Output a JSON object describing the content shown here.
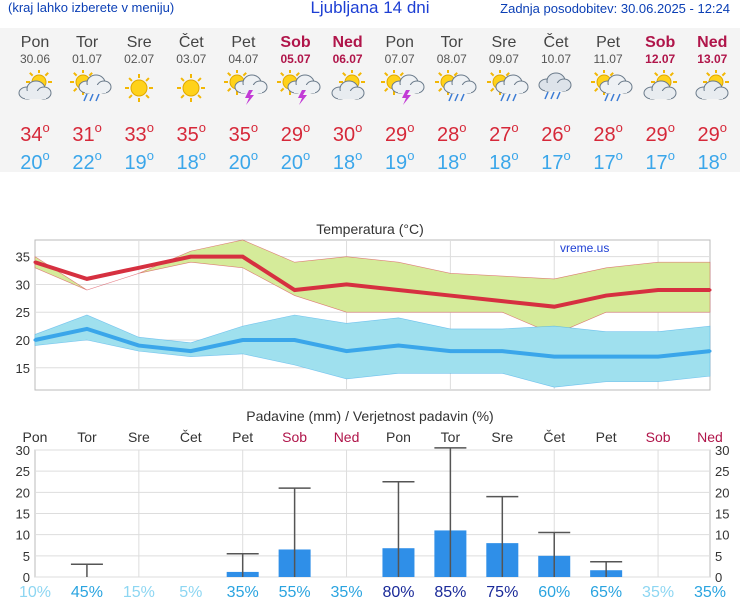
{
  "header": {
    "menu_hint": "(kraj lahko izberete v meniju)",
    "title": "Ljubljana 14 dni",
    "updated": "Zadnja posodobitev: 30.06.2025 - 12:24"
  },
  "days": [
    {
      "name": "Pon",
      "date": "30.06",
      "weekend": false,
      "icon": "partly-cloudy-icon",
      "max": "34",
      "min": "20"
    },
    {
      "name": "Tor",
      "date": "01.07",
      "weekend": false,
      "icon": "sun-cloud-rain-icon",
      "max": "31",
      "min": "22"
    },
    {
      "name": "Sre",
      "date": "02.07",
      "weekend": false,
      "icon": "sunny-icon",
      "max": "33",
      "min": "19"
    },
    {
      "name": "Čet",
      "date": "03.07",
      "weekend": false,
      "icon": "sunny-icon",
      "max": "35",
      "min": "18"
    },
    {
      "name": "Pet",
      "date": "04.07",
      "weekend": false,
      "icon": "sun-cloud-thunder-icon",
      "max": "35",
      "min": "20"
    },
    {
      "name": "Sob",
      "date": "05.07",
      "weekend": true,
      "icon": "sun-cloud-thunder-icon",
      "max": "29",
      "min": "20"
    },
    {
      "name": "Ned",
      "date": "06.07",
      "weekend": true,
      "icon": "partly-cloudy-icon",
      "max": "30",
      "min": "18"
    },
    {
      "name": "Pon",
      "date": "07.07",
      "weekend": false,
      "icon": "sun-cloud-thunder-icon",
      "max": "29",
      "min": "19"
    },
    {
      "name": "Tor",
      "date": "08.07",
      "weekend": false,
      "icon": "sun-cloud-rain-icon",
      "max": "28",
      "min": "18"
    },
    {
      "name": "Sre",
      "date": "09.07",
      "weekend": false,
      "icon": "sun-cloud-rain-icon",
      "max": "27",
      "min": "18"
    },
    {
      "name": "Čet",
      "date": "10.07",
      "weekend": false,
      "icon": "cloud-rain-icon",
      "max": "26",
      "min": "17"
    },
    {
      "name": "Pet",
      "date": "11.07",
      "weekend": false,
      "icon": "sun-cloud-rain-icon",
      "max": "28",
      "min": "17"
    },
    {
      "name": "Sob",
      "date": "12.07",
      "weekend": true,
      "icon": "partly-cloudy-icon",
      "max": "29",
      "min": "17"
    },
    {
      "name": "Ned",
      "date": "13.07",
      "weekend": true,
      "icon": "partly-cloudy-icon",
      "max": "29",
      "min": "18"
    }
  ],
  "chart_data": [
    {
      "type": "line",
      "title": "Temperatura (°C)",
      "watermark": "vreme.us",
      "x_count": 14,
      "ylim": [
        11,
        38
      ],
      "yticks": [
        15,
        20,
        25,
        30,
        35
      ],
      "grid": true,
      "series": [
        {
          "color": "#d63040",
          "values": [
            34,
            31,
            33,
            35,
            35,
            29,
            30,
            29,
            28,
            27,
            26,
            28,
            29,
            29
          ],
          "band_upper": [
            35,
            29,
            32,
            36,
            38,
            34,
            35,
            34,
            32,
            31.5,
            31,
            33,
            34,
            34
          ],
          "band_lower": [
            33,
            29,
            32,
            34,
            33,
            28,
            25,
            25,
            25,
            25,
            21,
            25,
            25,
            25
          ],
          "band_color": "#d5eb9a"
        },
        {
          "color": "#3aa6ea",
          "values": [
            20,
            22,
            19,
            18,
            20,
            20,
            18,
            19,
            18,
            18,
            17,
            17,
            17,
            18
          ],
          "band_upper": [
            21,
            24.5,
            20.5,
            19.5,
            22.5,
            24.5,
            23,
            24,
            22,
            22,
            22.5,
            21.5,
            21.5,
            22.5
          ],
          "band_lower": [
            19,
            20,
            18,
            17,
            17.5,
            15.5,
            13,
            14,
            14,
            14,
            11.5,
            12.5,
            12.5,
            13.5
          ],
          "band_color": "#9fe0ee"
        }
      ]
    },
    {
      "type": "bar",
      "title": "Padavine (mm) / Verjetnost padavin (%)",
      "categories": [
        "Pon",
        "Tor",
        "Sre",
        "Čet",
        "Pet",
        "Sob",
        "Ned",
        "Pon",
        "Tor",
        "Sre",
        "Čet",
        "Pet",
        "Sob",
        "Ned"
      ],
      "weekend": [
        false,
        false,
        false,
        false,
        false,
        true,
        true,
        false,
        false,
        false,
        false,
        false,
        true,
        true
      ],
      "ylim": [
        0,
        30
      ],
      "yticks": [
        0,
        5,
        10,
        15,
        20,
        25,
        30
      ],
      "precip_mm": [
        0,
        0,
        0,
        0,
        1.2,
        6.5,
        0,
        6.8,
        11,
        8,
        5,
        1.6,
        0,
        0
      ],
      "precip_max_mm": [
        0,
        3,
        0,
        0,
        5.5,
        21,
        0,
        22.5,
        30.5,
        19,
        10.5,
        3.6,
        0,
        0
      ],
      "probability": [
        "10%",
        "45%",
        "15%",
        "5%",
        "35%",
        "55%",
        "35%",
        "80%",
        "85%",
        "75%",
        "60%",
        "65%",
        "35%",
        "35%"
      ],
      "probability_colors": [
        "#8dd6f2",
        "#2aa4e0",
        "#8dd6f2",
        "#8dd6f2",
        "#2aa4e0",
        "#2aa4e0",
        "#2aa4e0",
        "#1a2a99",
        "#1a2a99",
        "#1a2a99",
        "#2aa4e0",
        "#2aa4e0",
        "#8dd6f2",
        "#2aa4e0"
      ]
    }
  ]
}
